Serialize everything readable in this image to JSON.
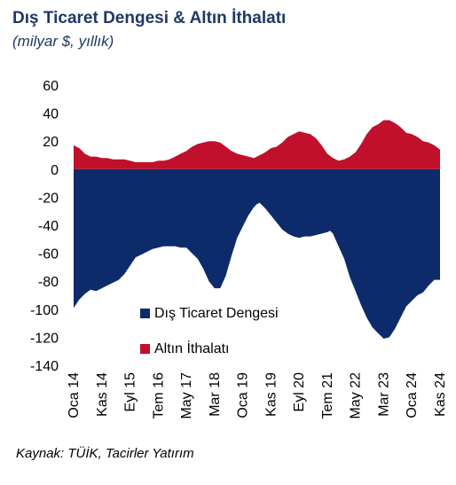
{
  "chart_data": {
    "type": "area",
    "title": "Dış Ticaret Dengesi & Altın İthalatı",
    "subtitle": "(milyar $, yıllık)",
    "source": "Kaynak: TÜİK, Tacirler Yatırım",
    "ylim": [
      -140,
      60
    ],
    "yticks": [
      60,
      40,
      20,
      0,
      -20,
      -40,
      -60,
      -80,
      -100,
      -120,
      -140
    ],
    "xlim": [
      0,
      130
    ],
    "xticks": [
      {
        "label": "Oca 14",
        "x": 0
      },
      {
        "label": "Kas 14",
        "x": 10
      },
      {
        "label": "Eyl 15",
        "x": 20
      },
      {
        "label": "Tem 16",
        "x": 30
      },
      {
        "label": "May 17",
        "x": 40
      },
      {
        "label": "Mar 18",
        "x": 50
      },
      {
        "label": "Oca 19",
        "x": 60
      },
      {
        "label": "Kas 19",
        "x": 70
      },
      {
        "label": "Eyl 20",
        "x": 80
      },
      {
        "label": "Tem 21",
        "x": 90
      },
      {
        "label": "May 22",
        "x": 100
      },
      {
        "label": "Mar 23",
        "x": 110
      },
      {
        "label": "Oca 24",
        "x": 120
      },
      {
        "label": "Kas 24",
        "x": 130
      }
    ],
    "legend_position": "bottom-center",
    "series": [
      {
        "name": "Dış Ticaret Dengesi",
        "color": "#0d2a6b",
        "points": [
          [
            0,
            -99
          ],
          [
            2,
            -93
          ],
          [
            4,
            -89
          ],
          [
            6,
            -86
          ],
          [
            8,
            -87
          ],
          [
            10,
            -85
          ],
          [
            12,
            -83
          ],
          [
            14,
            -81
          ],
          [
            16,
            -79
          ],
          [
            18,
            -75
          ],
          [
            20,
            -69
          ],
          [
            22,
            -63
          ],
          [
            24,
            -61
          ],
          [
            26,
            -59
          ],
          [
            28,
            -57
          ],
          [
            30,
            -56
          ],
          [
            32,
            -55
          ],
          [
            34,
            -55
          ],
          [
            36,
            -55
          ],
          [
            38,
            -56
          ],
          [
            40,
            -56
          ],
          [
            42,
            -60
          ],
          [
            44,
            -64
          ],
          [
            46,
            -71
          ],
          [
            48,
            -80
          ],
          [
            50,
            -85
          ],
          [
            52,
            -85
          ],
          [
            54,
            -76
          ],
          [
            56,
            -62
          ],
          [
            58,
            -49
          ],
          [
            60,
            -41
          ],
          [
            62,
            -33
          ],
          [
            64,
            -27
          ],
          [
            65,
            -25
          ],
          [
            66,
            -24
          ],
          [
            68,
            -28
          ],
          [
            70,
            -33
          ],
          [
            72,
            -38
          ],
          [
            74,
            -43
          ],
          [
            76,
            -46
          ],
          [
            78,
            -48
          ],
          [
            80,
            -49
          ],
          [
            82,
            -48
          ],
          [
            84,
            -48
          ],
          [
            86,
            -47
          ],
          [
            88,
            -46
          ],
          [
            90,
            -45
          ],
          [
            91,
            -44
          ],
          [
            92,
            -46
          ],
          [
            94,
            -55
          ],
          [
            96,
            -64
          ],
          [
            98,
            -77
          ],
          [
            100,
            -87
          ],
          [
            102,
            -97
          ],
          [
            104,
            -106
          ],
          [
            106,
            -113
          ],
          [
            108,
            -117
          ],
          [
            110,
            -121
          ],
          [
            112,
            -120
          ],
          [
            114,
            -114
          ],
          [
            116,
            -106
          ],
          [
            118,
            -98
          ],
          [
            120,
            -94
          ],
          [
            122,
            -90
          ],
          [
            124,
            -88
          ],
          [
            126,
            -83
          ],
          [
            128,
            -79
          ],
          [
            130,
            -79
          ]
        ]
      },
      {
        "name": "Altın İthalatı",
        "color": "#c0102c",
        "points": [
          [
            0,
            17
          ],
          [
            2,
            15
          ],
          [
            4,
            11
          ],
          [
            6,
            9
          ],
          [
            8,
            9
          ],
          [
            10,
            8
          ],
          [
            12,
            8
          ],
          [
            14,
            7
          ],
          [
            16,
            7
          ],
          [
            18,
            7
          ],
          [
            20,
            6
          ],
          [
            22,
            5
          ],
          [
            24,
            5
          ],
          [
            26,
            5
          ],
          [
            28,
            5
          ],
          [
            30,
            6
          ],
          [
            32,
            6
          ],
          [
            34,
            7
          ],
          [
            36,
            9
          ],
          [
            38,
            11
          ],
          [
            40,
            13
          ],
          [
            42,
            16
          ],
          [
            44,
            18
          ],
          [
            46,
            19
          ],
          [
            48,
            20
          ],
          [
            50,
            20
          ],
          [
            52,
            19
          ],
          [
            54,
            16
          ],
          [
            56,
            13
          ],
          [
            58,
            11
          ],
          [
            60,
            10
          ],
          [
            62,
            9
          ],
          [
            64,
            8
          ],
          [
            66,
            10
          ],
          [
            68,
            12
          ],
          [
            70,
            15
          ],
          [
            72,
            16
          ],
          [
            74,
            19
          ],
          [
            76,
            23
          ],
          [
            78,
            25
          ],
          [
            80,
            27
          ],
          [
            82,
            26
          ],
          [
            84,
            25
          ],
          [
            86,
            22
          ],
          [
            88,
            17
          ],
          [
            90,
            11
          ],
          [
            92,
            8
          ],
          [
            94,
            6
          ],
          [
            96,
            7
          ],
          [
            98,
            9
          ],
          [
            100,
            12
          ],
          [
            102,
            18
          ],
          [
            104,
            25
          ],
          [
            106,
            30
          ],
          [
            108,
            32
          ],
          [
            110,
            35
          ],
          [
            112,
            35
          ],
          [
            114,
            33
          ],
          [
            116,
            30
          ],
          [
            118,
            26
          ],
          [
            120,
            25
          ],
          [
            122,
            23
          ],
          [
            124,
            20
          ],
          [
            126,
            19
          ],
          [
            128,
            17
          ],
          [
            130,
            14
          ]
        ]
      }
    ]
  }
}
